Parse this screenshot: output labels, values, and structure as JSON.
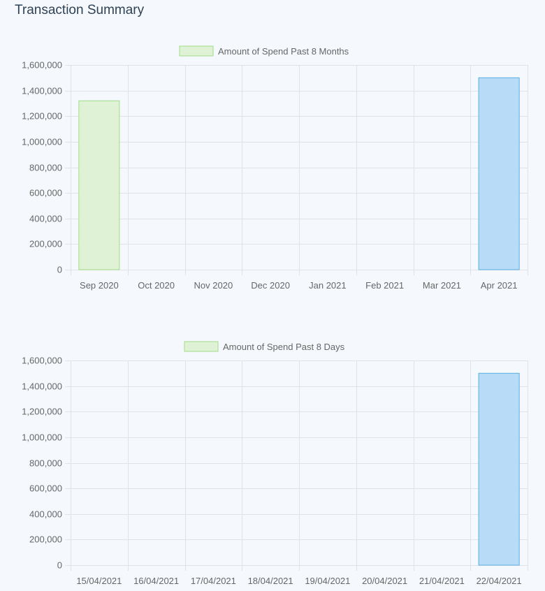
{
  "header": {
    "title": "Transaction Summary"
  },
  "colors": {
    "green_fill": "#dff2d6",
    "green_stroke": "#a3dc88",
    "blue_fill": "#b8dcf7",
    "blue_stroke": "#5aaee0",
    "grid": "#dfe3e8",
    "axis_text": "#666666"
  },
  "chart_data": [
    {
      "type": "bar",
      "legend": "Amount of Spend Past 8 Months",
      "legend_position": "top-center",
      "categories": [
        "Sep 2020",
        "Oct 2020",
        "Nov 2020",
        "Dec 2020",
        "Jan 2021",
        "Feb 2021",
        "Mar 2021",
        "Apr 2021"
      ],
      "values": [
        1320000,
        0,
        0,
        0,
        0,
        0,
        0,
        1500000
      ],
      "bar_colors": [
        "green",
        "green",
        "green",
        "green",
        "green",
        "green",
        "green",
        "blue"
      ],
      "ylim": [
        0,
        1600000
      ],
      "yticks": [
        "0",
        "200,000",
        "400,000",
        "600,000",
        "800,000",
        "1,000,000",
        "1,200,000",
        "1,400,000",
        "1,600,000"
      ],
      "grid": true
    },
    {
      "type": "bar",
      "legend": "Amount of Spend Past 8 Days",
      "legend_position": "top-center",
      "categories": [
        "15/04/2021",
        "16/04/2021",
        "17/04/2021",
        "18/04/2021",
        "19/04/2021",
        "20/04/2021",
        "21/04/2021",
        "22/04/2021"
      ],
      "values": [
        0,
        0,
        0,
        0,
        0,
        0,
        0,
        1500000
      ],
      "bar_colors": [
        "green",
        "green",
        "green",
        "green",
        "green",
        "green",
        "green",
        "blue"
      ],
      "ylim": [
        0,
        1600000
      ],
      "yticks": [
        "0",
        "200,000",
        "400,000",
        "600,000",
        "800,000",
        "1,000,000",
        "1,200,000",
        "1,400,000",
        "1,600,000"
      ],
      "grid": true
    }
  ]
}
